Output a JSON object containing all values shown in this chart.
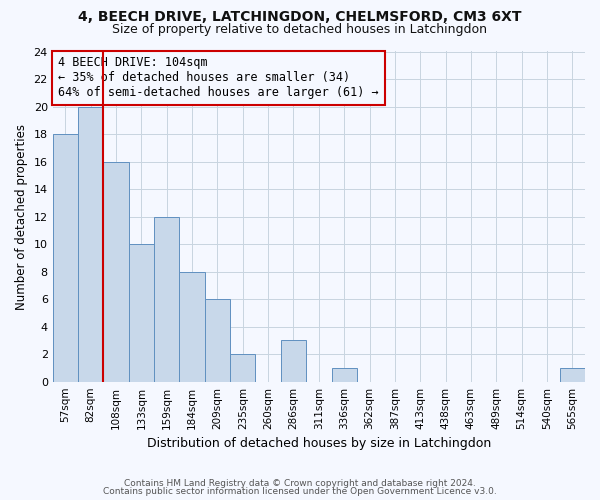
{
  "title": "4, BEECH DRIVE, LATCHINGDON, CHELMSFORD, CM3 6XT",
  "subtitle": "Size of property relative to detached houses in Latchingdon",
  "xlabel": "Distribution of detached houses by size in Latchingdon",
  "ylabel": "Number of detached properties",
  "footnote1": "Contains HM Land Registry data © Crown copyright and database right 2024.",
  "footnote2": "Contains public sector information licensed under the Open Government Licence v3.0.",
  "categories": [
    "57sqm",
    "82sqm",
    "108sqm",
    "133sqm",
    "159sqm",
    "184sqm",
    "209sqm",
    "235sqm",
    "260sqm",
    "286sqm",
    "311sqm",
    "336sqm",
    "362sqm",
    "387sqm",
    "413sqm",
    "438sqm",
    "463sqm",
    "489sqm",
    "514sqm",
    "540sqm",
    "565sqm"
  ],
  "values": [
    18,
    20,
    16,
    10,
    12,
    8,
    6,
    2,
    0,
    3,
    0,
    1,
    0,
    0,
    0,
    0,
    0,
    0,
    0,
    0,
    1
  ],
  "bar_color": "#c8d8ea",
  "bar_edge_color": "#6090c0",
  "ylim": [
    0,
    24
  ],
  "yticks": [
    0,
    2,
    4,
    6,
    8,
    10,
    12,
    14,
    16,
    18,
    20,
    22,
    24
  ],
  "red_line_x": 1.5,
  "annotation_line1": "4 BEECH DRIVE: 104sqm",
  "annotation_line2": "← 35% of detached houses are smaller (34)",
  "annotation_line3": "64% of semi-detached houses are larger (61) →",
  "annotation_color": "#cc0000",
  "grid_color": "#c8d4e0",
  "bg_color": "#f5f8ff",
  "title_fontsize": 10,
  "subtitle_fontsize": 9
}
